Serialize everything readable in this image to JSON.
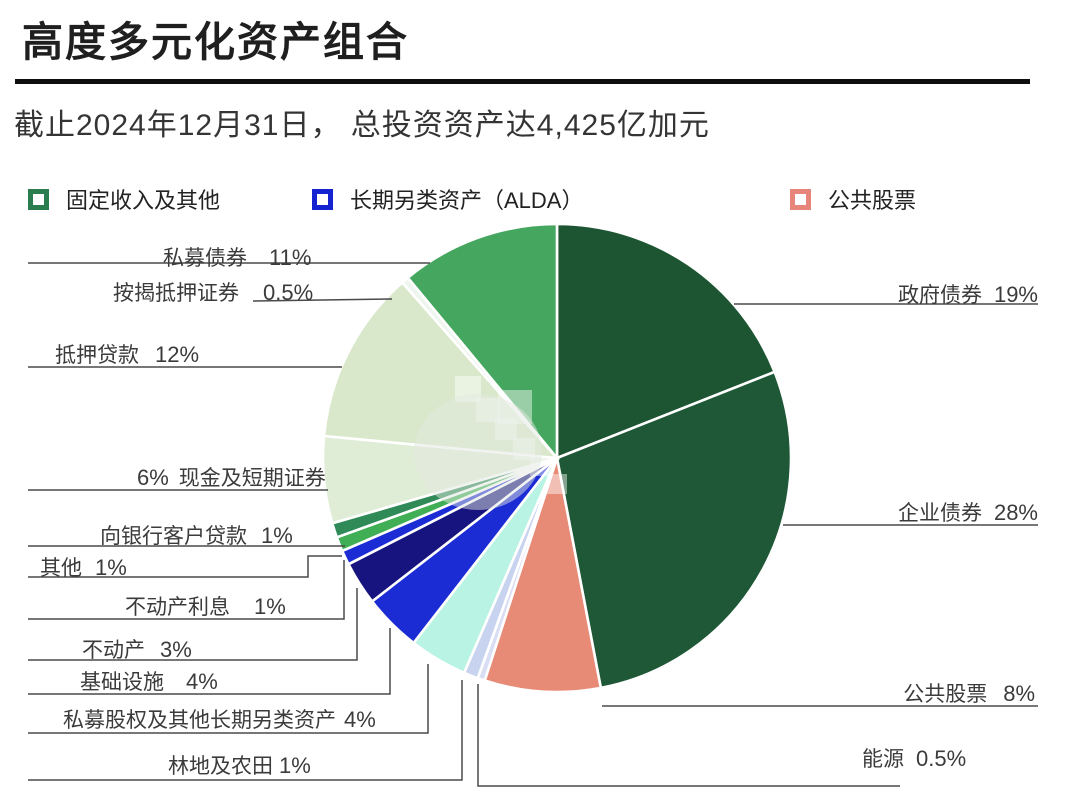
{
  "header": {
    "title": "高度多元化资产组合",
    "subtitle": "截止2024年12月31日， 总投资资产达4,425亿加元"
  },
  "legend": [
    {
      "label": "固定收入及其他",
      "color": "#2a7d4f"
    },
    {
      "label": "长期另类资产（ALDA）",
      "color": "#1522cf"
    },
    {
      "label": "公共股票",
      "color": "#e8857a"
    }
  ],
  "chart_data": {
    "type": "pie",
    "title": "高度多元化资产组合",
    "subtitle": "截止2024年12月31日，总投资资产达4,425亿加元",
    "as_of_date": "2024年12月31日",
    "total_assets": "4,425亿加元",
    "legend_position": "top",
    "start_angle": "12点钟方向，顺时针",
    "slices": [
      {
        "label": "政府债券",
        "pct": "19%",
        "value": 19,
        "color": "#1d5533",
        "group": "固定收入及其他"
      },
      {
        "label": "企业债券",
        "pct": "28%",
        "value": 28,
        "color": "#1e5836",
        "group": "固定收入及其他"
      },
      {
        "label": "公共股票",
        "pct": "8%",
        "value": 8,
        "color": "#e78b77",
        "group": "公共股票"
      },
      {
        "label": "能源",
        "pct": "0.5%",
        "value": 0.5,
        "color": "#dadef5",
        "group": "长期另类资产（ALDA）"
      },
      {
        "label": "林地及农田",
        "pct": "1%",
        "value": 1,
        "color": "#c8d3ef",
        "group": "长期另类资产（ALDA）"
      },
      {
        "label": "私募股权及其他长期另类资产",
        "pct": "4%",
        "value": 4,
        "color": "#b9f3e3",
        "group": "长期另类资产（ALDA）"
      },
      {
        "label": "基础设施",
        "pct": "4%",
        "value": 4,
        "color": "#1c2cd5",
        "group": "长期另类资产（ALDA）"
      },
      {
        "label": "不动产",
        "pct": "3%",
        "value": 3,
        "color": "#17147f",
        "group": "长期另类资产（ALDA）"
      },
      {
        "label": "不动产利息",
        "pct": "1%",
        "value": 1,
        "color": "#1c2cd5",
        "group": "长期另类资产（ALDA）"
      },
      {
        "label": "其他",
        "pct": "1%",
        "value": 1,
        "color": "#3fae54",
        "group": "固定收入及其他"
      },
      {
        "label": "向银行客户贷款",
        "pct": "1%",
        "value": 1,
        "color": "#2f8a57",
        "group": "固定收入及其他"
      },
      {
        "label": "现金及短期证券",
        "pct": "6%",
        "value": 6,
        "color": "#e0edd6",
        "group": "固定收入及其他"
      },
      {
        "label": "抵押贷款",
        "pct": "12%",
        "value": 12,
        "color": "#d9e8ca",
        "group": "固定收入及其他"
      },
      {
        "label": "按揭抵押证券",
        "pct": "0.5%",
        "value": 0.5,
        "color": "#eef5ee",
        "group": "固定收入及其他"
      },
      {
        "label": "私募债券",
        "pct": "11%",
        "value": 11,
        "color": "#45a75f",
        "group": "固定收入及其他"
      }
    ]
  }
}
